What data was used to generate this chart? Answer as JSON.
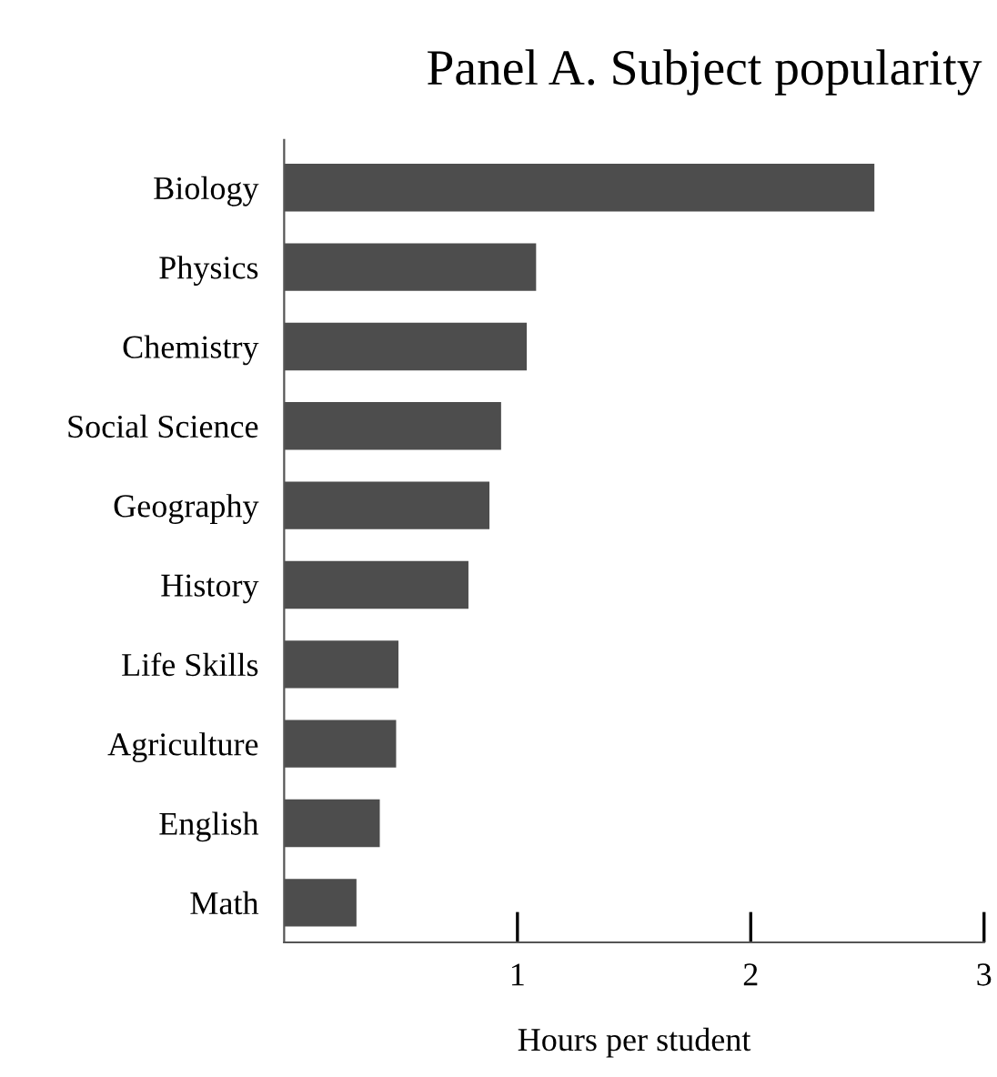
{
  "chart_data": {
    "type": "bar",
    "orientation": "horizontal",
    "title": "Panel A. Subject popularity",
    "xlabel": "Hours per student",
    "categories": [
      "Biology",
      "Physics",
      "Chemistry",
      "Social Science",
      "Geography",
      "History",
      "Life Skills",
      "Agriculture",
      "English",
      "Math"
    ],
    "values": [
      2.53,
      1.08,
      1.04,
      0.93,
      0.88,
      0.79,
      0.49,
      0.48,
      0.41,
      0.31
    ],
    "color": "#4d4d4d",
    "xlim": [
      0,
      3
    ],
    "xticks": [
      1,
      2,
      3
    ],
    "grid": false
  }
}
